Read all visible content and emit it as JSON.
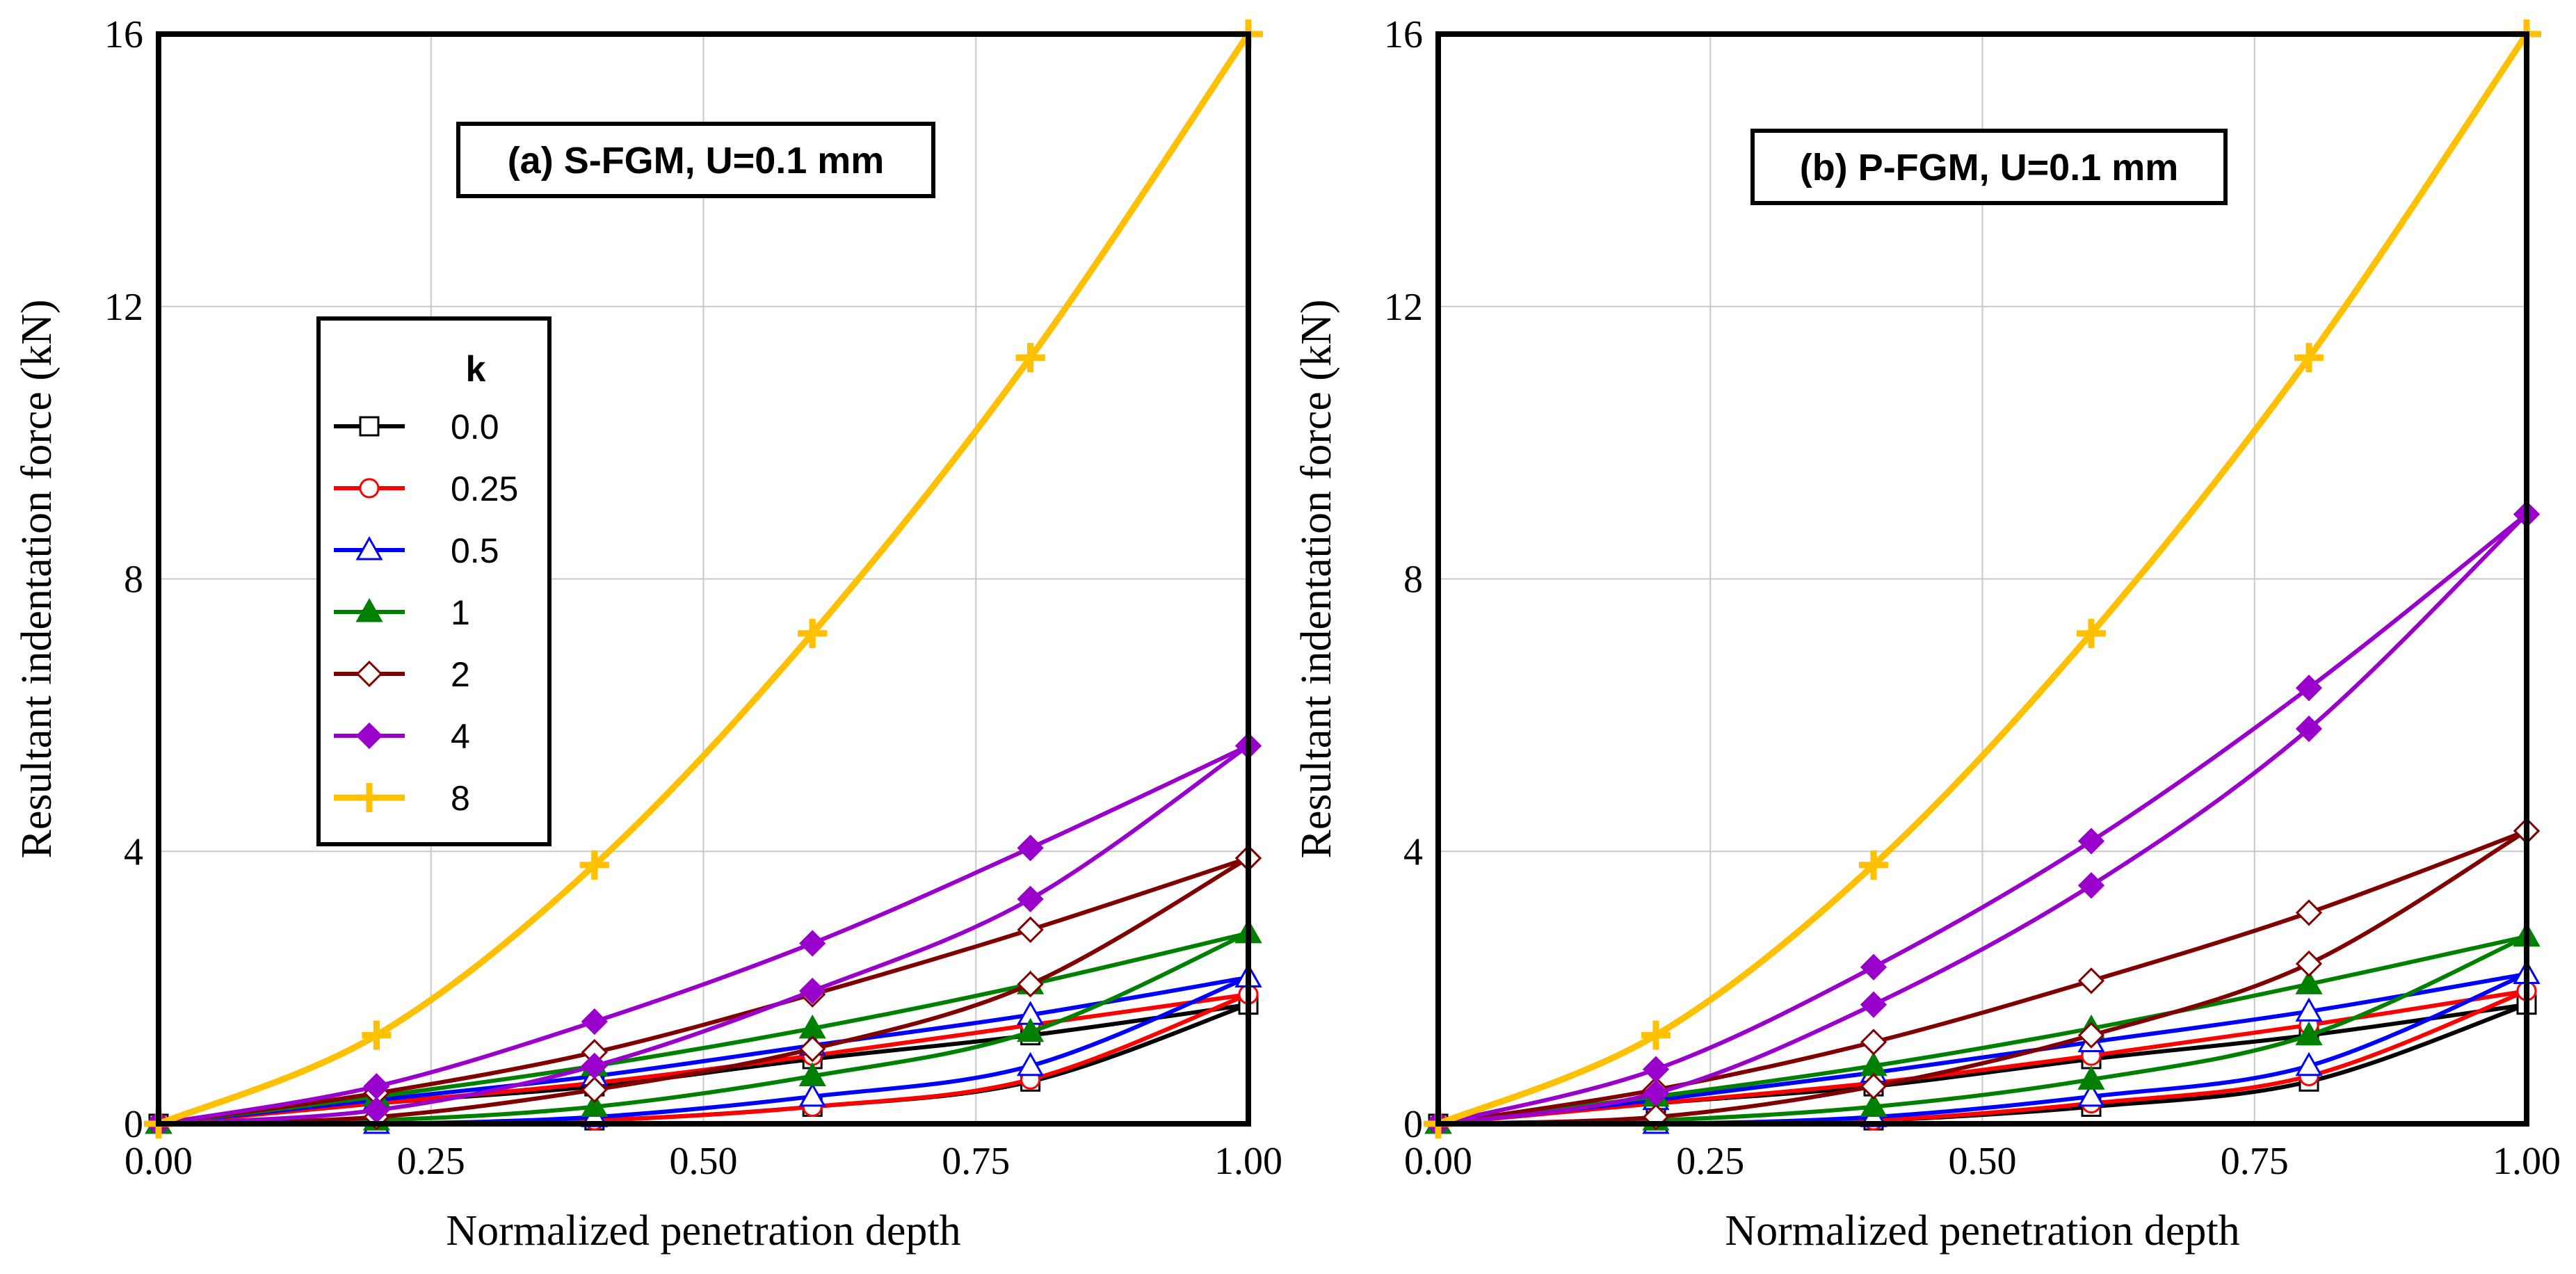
{
  "chart_data": [
    {
      "type": "line",
      "title": "(a) S-FGM, U=0.1 mm",
      "xlabel": "Normalized penetration depth",
      "ylabel": "Resultant indentation force (kN)",
      "xlim": [
        0,
        1
      ],
      "ylim": [
        0,
        16
      ],
      "xticks": [
        "0.00",
        "0.25",
        "0.50",
        "0.75",
        "1.00"
      ],
      "yticks": [
        "0",
        "4",
        "8",
        "12",
        "16"
      ],
      "grid": true,
      "legend_title": "k",
      "legend_position": "center-left",
      "x": [
        0,
        0.2,
        0.4,
        0.6,
        0.8,
        1.0
      ],
      "series": [
        {
          "name": "0.0",
          "color": "#000000",
          "marker": "square-open",
          "loading": [
            0,
            0.3,
            0.55,
            0.95,
            1.3,
            1.75
          ],
          "unloading": [
            0,
            0.0,
            0.05,
            0.25,
            0.62,
            1.75
          ]
        },
        {
          "name": "0.25",
          "color": "#ff0000",
          "marker": "circle-open",
          "loading": [
            0,
            0.3,
            0.6,
            1.0,
            1.45,
            1.9
          ],
          "unloading": [
            0,
            0.0,
            0.05,
            0.25,
            0.65,
            1.9
          ]
        },
        {
          "name": "0.5",
          "color": "#0000ff",
          "marker": "triangle-open",
          "loading": [
            0,
            0.35,
            0.7,
            1.15,
            1.6,
            2.15
          ],
          "unloading": [
            0,
            0.0,
            0.1,
            0.4,
            0.85,
            2.15
          ]
        },
        {
          "name": "1",
          "color": "#008000",
          "marker": "triangle-filled",
          "loading": [
            0,
            0.4,
            0.85,
            1.4,
            2.05,
            2.8
          ],
          "unloading": [
            0,
            0.05,
            0.25,
            0.7,
            1.35,
            2.8
          ]
        },
        {
          "name": "2",
          "color": "#800000",
          "marker": "diamond-open",
          "loading": [
            0,
            0.45,
            1.05,
            1.9,
            2.85,
            3.9
          ],
          "unloading": [
            0,
            0.1,
            0.5,
            1.1,
            2.05,
            3.9
          ]
        },
        {
          "name": "4",
          "color": "#9900cc",
          "marker": "diamond-filled",
          "loading": [
            0,
            0.55,
            1.5,
            2.65,
            4.05,
            5.55
          ],
          "unloading": [
            0,
            0.2,
            0.85,
            1.95,
            3.3,
            5.55
          ]
        },
        {
          "name": "8",
          "color": "#ffc000",
          "marker": "plus",
          "loading": [
            0,
            1.3,
            3.8,
            7.2,
            11.25,
            16.0
          ],
          "unloading": [
            0,
            1.3,
            3.8,
            7.2,
            11.25,
            16.0
          ]
        }
      ]
    },
    {
      "type": "line",
      "title": "(b) P-FGM, U=0.1 mm",
      "xlabel": "Normalized penetration depth",
      "ylabel": "Resultant indentation force (kN)",
      "xlim": [
        0,
        1
      ],
      "ylim": [
        0,
        16
      ],
      "xticks": [
        "0.00",
        "0.25",
        "0.50",
        "0.75",
        "1.00"
      ],
      "yticks": [
        "0",
        "4",
        "8",
        "12",
        "16"
      ],
      "grid": true,
      "x": [
        0,
        0.2,
        0.4,
        0.6,
        0.8,
        1.0
      ],
      "series": [
        {
          "name": "0.0",
          "color": "#000000",
          "marker": "square-open",
          "loading": [
            0,
            0.3,
            0.55,
            0.95,
            1.3,
            1.75
          ],
          "unloading": [
            0,
            0.0,
            0.05,
            0.25,
            0.62,
            1.75
          ]
        },
        {
          "name": "0.25",
          "color": "#ff0000",
          "marker": "circle-open",
          "loading": [
            0,
            0.3,
            0.6,
            1.0,
            1.45,
            1.95
          ],
          "unloading": [
            0,
            0.0,
            0.05,
            0.3,
            0.7,
            1.95
          ]
        },
        {
          "name": "0.5",
          "color": "#0000ff",
          "marker": "triangle-open",
          "loading": [
            0,
            0.35,
            0.75,
            1.2,
            1.65,
            2.2
          ],
          "unloading": [
            0,
            0.0,
            0.1,
            0.4,
            0.85,
            2.2
          ]
        },
        {
          "name": "1",
          "color": "#008000",
          "marker": "triangle-filled",
          "loading": [
            0,
            0.4,
            0.85,
            1.4,
            2.05,
            2.75
          ],
          "unloading": [
            0,
            0.05,
            0.25,
            0.65,
            1.3,
            2.75
          ]
        },
        {
          "name": "2",
          "color": "#800000",
          "marker": "diamond-open",
          "loading": [
            0,
            0.5,
            1.2,
            2.1,
            3.1,
            4.3
          ],
          "unloading": [
            0,
            0.1,
            0.55,
            1.3,
            2.35,
            4.3
          ]
        },
        {
          "name": "4",
          "color": "#9900cc",
          "marker": "diamond-filled",
          "loading": [
            0,
            0.8,
            2.3,
            4.15,
            6.4,
            8.95
          ],
          "unloading": [
            0,
            0.45,
            1.75,
            3.5,
            5.8,
            8.95
          ]
        },
        {
          "name": "8",
          "color": "#ffc000",
          "marker": "plus",
          "loading": [
            0,
            1.3,
            3.8,
            7.2,
            11.25,
            16.0
          ],
          "unloading": [
            0,
            1.3,
            3.8,
            7.2,
            11.25,
            16.0
          ]
        }
      ]
    }
  ]
}
